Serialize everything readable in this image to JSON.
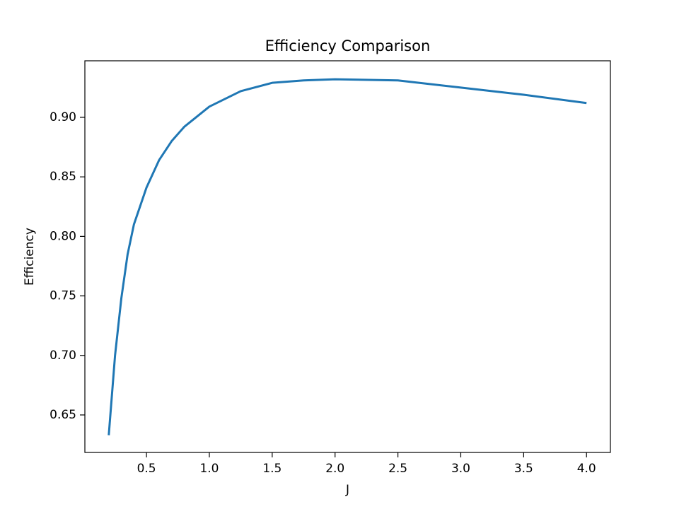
{
  "chart_data": {
    "type": "line",
    "title": "Efficiency Comparison",
    "xlabel": "J",
    "ylabel": "Efficiency",
    "x": [
      0.2,
      0.25,
      0.3,
      0.35,
      0.4,
      0.5,
      0.6,
      0.7,
      0.8,
      1.0,
      1.25,
      1.5,
      1.75,
      2.0,
      2.5,
      3.0,
      3.5,
      4.0
    ],
    "values": [
      0.633,
      0.7,
      0.748,
      0.785,
      0.81,
      0.841,
      0.864,
      0.88,
      0.892,
      0.909,
      0.922,
      0.929,
      0.931,
      0.932,
      0.931,
      0.925,
      0.919,
      0.912
    ],
    "color": "#1f77b4",
    "xlim": [
      0.01,
      4.19
    ],
    "xticks": [
      0.5,
      {
        "value": 1.0,
        "label": "1.0"
      },
      1.5,
      {
        "value": 2.0,
        "label": "2.0"
      },
      2.5,
      {
        "value": 3.0,
        "label": "3.0"
      },
      3.5,
      {
        "value": 4.0,
        "label": "4.0"
      }
    ],
    "ylim": [
      0.6185,
      0.9475
    ],
    "yticks": [
      0.65,
      {
        "value": 0.7,
        "label": "0.70"
      },
      0.75,
      {
        "value": 0.8,
        "label": "0.80"
      },
      0.85,
      {
        "value": 0.9,
        "label": "0.90"
      }
    ],
    "grid": false
  }
}
